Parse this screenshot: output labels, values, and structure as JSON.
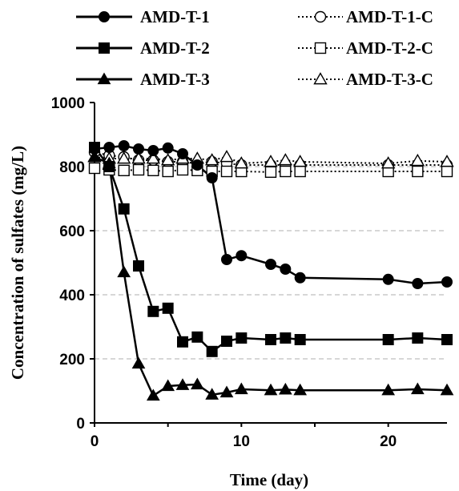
{
  "chart_data": {
    "type": "line",
    "xlabel": "Time (day)",
    "ylabel": "Concentration of sulfates (mg/L)",
    "xlim": [
      0,
      24
    ],
    "ylim": [
      0,
      1000
    ],
    "x_ticks": [
      "0",
      "10",
      "20"
    ],
    "y_ticks": [
      "0",
      "200",
      "400",
      "600",
      "800",
      "1000"
    ],
    "grid": "horizontal dashed",
    "legend_position": "top",
    "series": [
      {
        "name": "AMD-T-1",
        "marker": "circle-filled",
        "line": "solid",
        "x": [
          0,
          1,
          2,
          3,
          4,
          5,
          6,
          7,
          8,
          9,
          10,
          12,
          13,
          14,
          20,
          22,
          24
        ],
        "y": [
          855,
          860,
          865,
          855,
          850,
          858,
          840,
          805,
          765,
          510,
          522,
          495,
          480,
          453,
          448,
          435,
          440
        ]
      },
      {
        "name": "AMD-T-2",
        "marker": "square-filled",
        "line": "solid",
        "x": [
          0,
          1,
          2,
          3,
          4,
          5,
          6,
          7,
          8,
          9,
          10,
          12,
          13,
          14,
          20,
          22,
          24
        ],
        "y": [
          860,
          800,
          668,
          490,
          348,
          358,
          253,
          268,
          223,
          255,
          265,
          260,
          265,
          260,
          260,
          265,
          260
        ]
      },
      {
        "name": "AMD-T-3",
        "marker": "triangle-filled",
        "line": "solid",
        "x": [
          0,
          1,
          2,
          3,
          4,
          5,
          6,
          7,
          8,
          9,
          10,
          12,
          13,
          14,
          20,
          22,
          24
        ],
        "y": [
          830,
          810,
          470,
          185,
          85,
          115,
          118,
          120,
          88,
          95,
          105,
          102,
          104,
          102,
          102,
          105,
          102
        ]
      },
      {
        "name": "AMD-T-1-C",
        "marker": "circle-open",
        "line": "dotted",
        "x": [
          0,
          1,
          2,
          3,
          4,
          5,
          6,
          7,
          8,
          9,
          10,
          12,
          13,
          14,
          20,
          22,
          24
        ],
        "y": [
          845,
          835,
          830,
          820,
          820,
          815,
          815,
          810,
          815,
          810,
          805,
          805,
          805,
          805,
          805,
          805,
          805
        ]
      },
      {
        "name": "AMD-T-2-C",
        "marker": "square-open",
        "line": "dotted",
        "x": [
          0,
          1,
          2,
          3,
          4,
          5,
          6,
          7,
          8,
          9,
          10,
          12,
          13,
          14,
          20,
          22,
          24
        ],
        "y": [
          795,
          790,
          788,
          790,
          788,
          785,
          790,
          788,
          785,
          785,
          785,
          783,
          785,
          785,
          785,
          785,
          785
        ]
      },
      {
        "name": "AMD-T-3-C",
        "marker": "triangle-open",
        "line": "dotted",
        "x": [
          0,
          1,
          2,
          3,
          4,
          5,
          6,
          7,
          8,
          9,
          10,
          12,
          13,
          14,
          20,
          22,
          24
        ],
        "y": [
          830,
          825,
          825,
          825,
          825,
          820,
          825,
          825,
          820,
          830,
          810,
          815,
          820,
          815,
          810,
          818,
          815
        ]
      }
    ]
  }
}
